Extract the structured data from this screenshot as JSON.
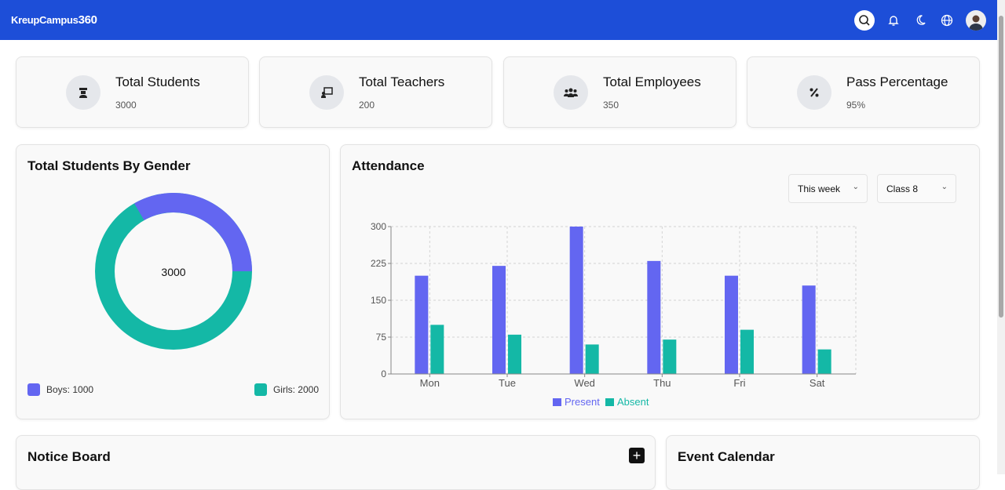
{
  "header": {
    "logo_text": "KreupCampus",
    "logo_suffix": "360",
    "icons": [
      "search-icon",
      "bell-icon",
      "moon-icon",
      "globe-icon",
      "avatar"
    ]
  },
  "stats": [
    {
      "label": "Total Students",
      "value": "3000",
      "icon": "graduate-icon"
    },
    {
      "label": "Total Teachers",
      "value": "200",
      "icon": "teacher-board-icon"
    },
    {
      "label": "Total Employees",
      "value": "350",
      "icon": "users-icon"
    },
    {
      "label": "Pass Percentage",
      "value": "95%",
      "icon": "percent-icon"
    }
  ],
  "gender": {
    "title": "Total Students By Gender",
    "center": "3000",
    "boys_label": "Boys: 1000",
    "girls_label": "Girls: 2000",
    "boys": 1000,
    "girls": 2000,
    "colors": {
      "boys": "#6366f1",
      "girls": "#14b8a6"
    }
  },
  "attendance": {
    "title": "Attendance",
    "period": "This week",
    "class": "Class 8"
  },
  "notice": {
    "title": "Notice Board"
  },
  "events": {
    "title": "Event Calendar"
  },
  "chart_data": {
    "type": "bar",
    "categories": [
      "Mon",
      "Tue",
      "Wed",
      "Thu",
      "Fri",
      "Sat"
    ],
    "ylim": [
      0,
      300
    ],
    "yticks": [
      0,
      75,
      150,
      225,
      300
    ],
    "grid": true,
    "legend": "bottom",
    "series": [
      {
        "name": "Present",
        "values": [
          200,
          220,
          300,
          230,
          200,
          180
        ],
        "color": "#6366f1"
      },
      {
        "name": "Absent",
        "values": [
          100,
          80,
          60,
          70,
          90,
          50
        ],
        "color": "#14b8a6"
      }
    ]
  }
}
